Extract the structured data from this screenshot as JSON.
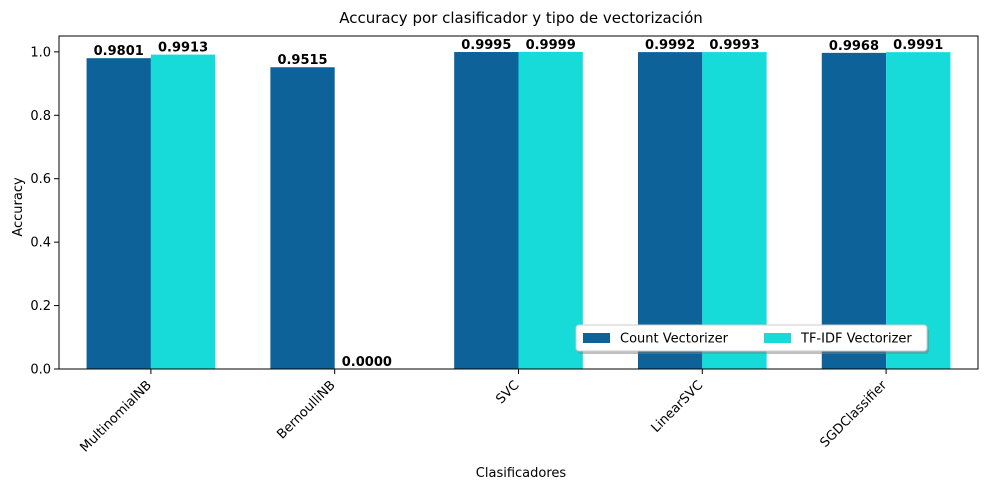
{
  "chart_data": {
    "type": "bar",
    "title": "Accuracy por clasificador y tipo de vectorización",
    "xlabel": "Clasificadores",
    "ylabel": "Accuracy",
    "categories": [
      "MultinomialNB",
      "BernoulliNB",
      "SVC",
      "LinearSVC",
      "SGDClassifier"
    ],
    "series": [
      {
        "name": "Count Vectorizer",
        "color": "#0d6399",
        "values": [
          0.9801,
          0.9515,
          0.9995,
          0.9992,
          0.9968
        ],
        "labels": [
          "0.9801",
          "0.9515",
          "0.9995",
          "0.9992",
          "0.9968"
        ]
      },
      {
        "name": "TF-IDF Vectorizer",
        "color": "#17dbd9",
        "values": [
          0.9913,
          0.0,
          0.9999,
          0.9993,
          0.9991
        ],
        "labels": [
          "0.9913",
          "0.0000",
          "0.9999",
          "0.9993",
          "0.9991"
        ]
      }
    ],
    "ylim": [
      0,
      1.05
    ],
    "yticks": [
      "0.0",
      "0.2",
      "0.4",
      "0.6",
      "0.8",
      "1.0"
    ],
    "ytick_values": [
      0,
      0.2,
      0.4,
      0.6,
      0.8,
      1.0
    ],
    "grid": false,
    "legend_position": "lower-right",
    "xtick_rotation": 45
  }
}
